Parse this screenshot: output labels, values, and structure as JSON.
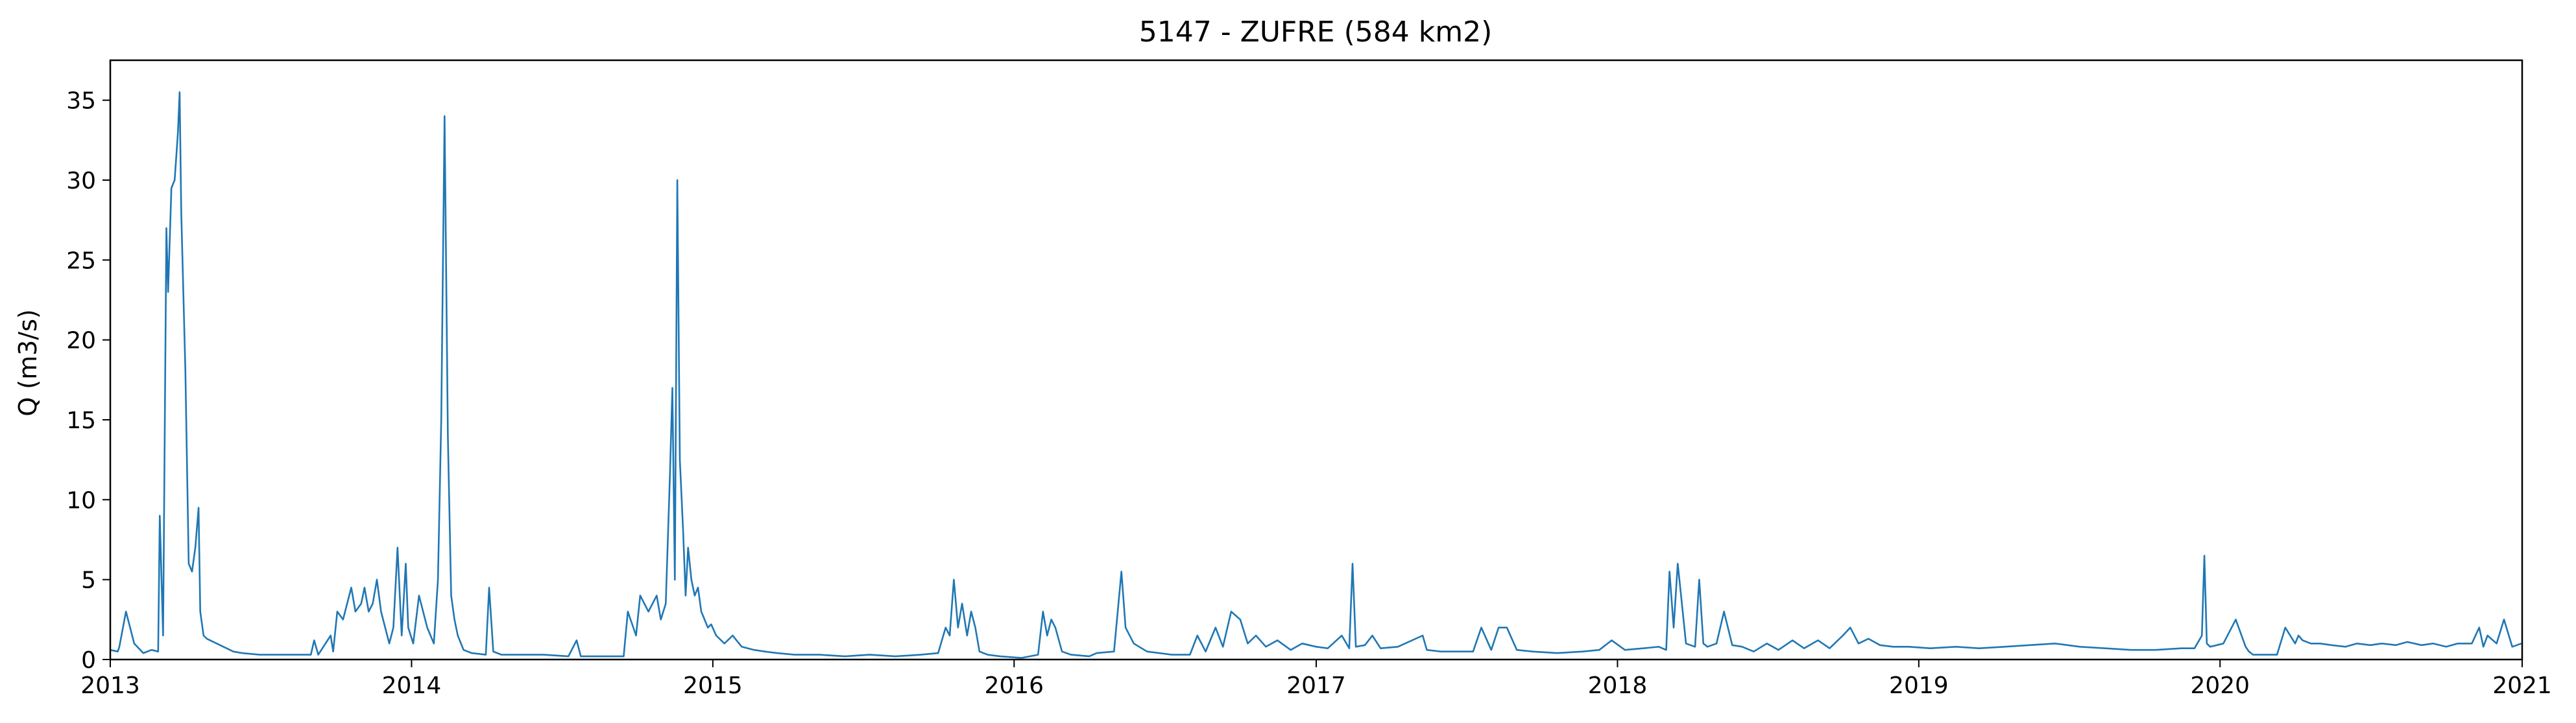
{
  "chart_data": {
    "type": "line",
    "title": "5147 - ZUFRE (584 km2)",
    "xlabel": "",
    "ylabel": "Q (m3/s)",
    "xlim": [
      "2013-01-01",
      "2021-01-01"
    ],
    "ylim": [
      0,
      37.5
    ],
    "x_ticks": [
      "2013",
      "2014",
      "2015",
      "2016",
      "2017",
      "2018",
      "2019",
      "2020",
      "2021"
    ],
    "y_ticks": [
      "0",
      "5",
      "10",
      "15",
      "20",
      "25",
      "30",
      "35"
    ],
    "grid": false,
    "legend": "none",
    "line_color": "#1f77b4",
    "series": [
      {
        "x": [
          "2013-01-01",
          "2013-01-10",
          "2013-01-12",
          "2013-01-20",
          "2013-01-30",
          "2013-02-10",
          "2013-02-20",
          "2013-02-28",
          "2013-03-02",
          "2013-03-06",
          "2013-03-10",
          "2013-03-12",
          "2013-03-16",
          "2013-03-20",
          "2013-03-22",
          "2013-03-24",
          "2013-03-26",
          "2013-03-28",
          "2013-04-02",
          "2013-04-06",
          "2013-04-10",
          "2013-04-14",
          "2013-04-18",
          "2013-04-20",
          "2013-04-24",
          "2013-04-28",
          "2013-05-02",
          "2013-05-06",
          "2013-05-10",
          "2013-05-14",
          "2013-05-18",
          "2013-05-22",
          "2013-05-26",
          "2013-05-30",
          "2013-06-10",
          "2013-07-01",
          "2013-08-01",
          "2013-09-01",
          "2013-09-05",
          "2013-09-10",
          "2013-09-25",
          "2013-09-28",
          "2013-10-03",
          "2013-10-10",
          "2013-10-20",
          "2013-10-25",
          "2013-11-01",
          "2013-11-05",
          "2013-11-10",
          "2013-11-15",
          "2013-11-20",
          "2013-11-25",
          "2013-12-05",
          "2013-12-10",
          "2013-12-15",
          "2013-12-20",
          "2013-12-25",
          "2013-12-28",
          "2014-01-03",
          "2014-01-10",
          "2014-01-20",
          "2014-01-28",
          "2014-02-02",
          "2014-02-06",
          "2014-02-10",
          "2014-02-14",
          "2014-02-18",
          "2014-02-22",
          "2014-02-26",
          "2014-03-05",
          "2014-03-15",
          "2014-04-01",
          "2014-04-05",
          "2014-04-10",
          "2014-04-20",
          "2014-05-10",
          "2014-06-10",
          "2014-07-10",
          "2014-07-20",
          "2014-07-25",
          "2014-08-15",
          "2014-09-15",
          "2014-09-20",
          "2014-09-30",
          "2014-10-05",
          "2014-10-15",
          "2014-10-25",
          "2014-10-30",
          "2014-11-05",
          "2014-11-10",
          "2014-11-13",
          "2014-11-16",
          "2014-11-19",
          "2014-11-22",
          "2014-11-26",
          "2014-11-29",
          "2014-12-02",
          "2014-12-06",
          "2014-12-10",
          "2014-12-14",
          "2014-12-18",
          "2014-12-22",
          "2014-12-26",
          "2014-12-30",
          "2015-01-05",
          "2015-01-15",
          "2015-01-25",
          "2015-02-05",
          "2015-02-20",
          "2015-03-05",
          "2015-03-20",
          "2015-04-10",
          "2015-05-10",
          "2015-06-10",
          "2015-07-10",
          "2015-08-10",
          "2015-09-10",
          "2015-10-01",
          "2015-10-10",
          "2015-10-15",
          "2015-10-20",
          "2015-10-25",
          "2015-10-30",
          "2015-11-05",
          "2015-11-10",
          "2015-11-15",
          "2015-11-20",
          "2015-11-30",
          "2015-12-15",
          "2016-01-10",
          "2016-01-30",
          "2016-02-05",
          "2016-02-10",
          "2016-02-15",
          "2016-02-20",
          "2016-02-28",
          "2016-03-10",
          "2016-04-01",
          "2016-04-10",
          "2016-05-01",
          "2016-05-10",
          "2016-05-15",
          "2016-05-25",
          "2016-06-10",
          "2016-07-10",
          "2016-08-01",
          "2016-08-10",
          "2016-08-20",
          "2016-09-01",
          "2016-09-10",
          "2016-09-20",
          "2016-10-01",
          "2016-10-10",
          "2016-10-20",
          "2016-11-01",
          "2016-11-15",
          "2016-12-01",
          "2016-12-15",
          "2017-01-01",
          "2017-01-15",
          "2017-02-01",
          "2017-02-10",
          "2017-02-14",
          "2017-02-18",
          "2017-03-01",
          "2017-03-10",
          "2017-03-20",
          "2017-04-10",
          "2017-05-10",
          "2017-05-15",
          "2017-06-01",
          "2017-06-20",
          "2017-07-10",
          "2017-07-20",
          "2017-08-01",
          "2017-08-10",
          "2017-08-20",
          "2017-09-01",
          "2017-09-20",
          "2017-10-20",
          "2017-11-20",
          "2017-12-10",
          "2017-12-25",
          "2018-01-10",
          "2018-02-01",
          "2018-02-20",
          "2018-03-01",
          "2018-03-05",
          "2018-03-10",
          "2018-03-15",
          "2018-03-20",
          "2018-03-25",
          "2018-04-05",
          "2018-04-10",
          "2018-04-15",
          "2018-04-20",
          "2018-05-01",
          "2018-05-10",
          "2018-05-20",
          "2018-06-01",
          "2018-06-15",
          "2018-07-01",
          "2018-07-15",
          "2018-08-01",
          "2018-08-15",
          "2018-09-01",
          "2018-09-15",
          "2018-10-01",
          "2018-10-10",
          "2018-10-20",
          "2018-11-01",
          "2018-11-15",
          "2018-12-01",
          "2018-12-20",
          "2019-01-15",
          "2019-02-15",
          "2019-03-15",
          "2019-04-15",
          "2019-05-15",
          "2019-06-15",
          "2019-07-15",
          "2019-08-15",
          "2019-09-15",
          "2019-10-15",
          "2019-11-15",
          "2019-12-01",
          "2019-12-10",
          "2019-12-13",
          "2019-12-16",
          "2019-12-20",
          "2020-01-05",
          "2020-01-20",
          "2020-02-01",
          "2020-02-05",
          "2020-02-10",
          "2020-02-20",
          "2020-03-10",
          "2020-03-20",
          "2020-04-01",
          "2020-04-05",
          "2020-04-10",
          "2020-04-20",
          "2020-05-01",
          "2020-05-15",
          "2020-06-01",
          "2020-06-15",
          "2020-07-01",
          "2020-07-15",
          "2020-08-01",
          "2020-08-15",
          "2020-09-01",
          "2020-09-15",
          "2020-10-01",
          "2020-10-15",
          "2020-11-01",
          "2020-11-10",
          "2020-11-15",
          "2020-11-20",
          "2020-12-01",
          "2020-12-10",
          "2020-12-20",
          "2020-12-31"
        ],
        "y": [
          0.6,
          0.5,
          0.8,
          3.0,
          1.0,
          0.4,
          0.6,
          0.5,
          9.0,
          1.5,
          27.0,
          23.0,
          29.5,
          30.0,
          31.5,
          33.0,
          35.5,
          28.0,
          18.0,
          6.0,
          5.5,
          7.0,
          9.5,
          3.0,
          1.5,
          1.3,
          1.2,
          1.1,
          1.0,
          0.9,
          0.8,
          0.7,
          0.6,
          0.5,
          0.4,
          0.3,
          0.3,
          0.3,
          1.2,
          0.3,
          1.5,
          0.5,
          3.0,
          2.5,
          4.5,
          3.0,
          3.5,
          4.5,
          3.0,
          3.5,
          5.0,
          3.0,
          1.0,
          2.0,
          7.0,
          1.5,
          6.0,
          2.0,
          1.0,
          4.0,
          2.0,
          1.0,
          5.0,
          15.0,
          34.0,
          14.0,
          4.0,
          2.5,
          1.5,
          0.6,
          0.4,
          0.3,
          4.5,
          0.5,
          0.3,
          0.3,
          0.3,
          0.2,
          1.2,
          0.2,
          0.2,
          0.2,
          3.0,
          1.5,
          4.0,
          3.0,
          4.0,
          2.5,
          3.5,
          11.5,
          17.0,
          5.0,
          30.0,
          12.5,
          8.0,
          4.0,
          7.0,
          5.0,
          4.0,
          4.5,
          3.0,
          2.5,
          2.0,
          2.2,
          1.5,
          1.0,
          1.5,
          0.8,
          0.6,
          0.5,
          0.4,
          0.3,
          0.3,
          0.2,
          0.3,
          0.2,
          0.3,
          0.4,
          2.0,
          1.5,
          5.0,
          2.0,
          3.5,
          1.5,
          3.0,
          2.0,
          0.5,
          0.3,
          0.2,
          0.1,
          0.3,
          3.0,
          1.5,
          2.5,
          2.0,
          0.5,
          0.3,
          0.2,
          0.4,
          0.5,
          5.5,
          2.0,
          1.0,
          0.5,
          0.3,
          0.3,
          1.5,
          0.5,
          2.0,
          0.8,
          3.0,
          2.5,
          1.0,
          1.5,
          0.8,
          1.2,
          0.6,
          1.0,
          0.8,
          0.7,
          1.5,
          0.7,
          6.0,
          0.8,
          0.9,
          1.5,
          0.7,
          0.8,
          1.5,
          0.6,
          0.5,
          0.5,
          0.5,
          2.0,
          0.6,
          2.0,
          2.0,
          0.6,
          0.5,
          0.4,
          0.5,
          0.6,
          1.2,
          0.6,
          0.7,
          0.8,
          0.6,
          5.5,
          2.0,
          6.0,
          3.5,
          1.0,
          0.8,
          5.0,
          1.0,
          0.8,
          1.0,
          3.0,
          0.9,
          0.8,
          0.5,
          1.0,
          0.6,
          1.2,
          0.7,
          1.2,
          0.7,
          1.5,
          2.0,
          1.0,
          1.3,
          0.9,
          0.8,
          0.8,
          0.7,
          0.8,
          0.7,
          0.8,
          0.9,
          1.0,
          0.8,
          0.7,
          0.6,
          0.6,
          0.7,
          0.7,
          1.5,
          6.5,
          1.0,
          0.8,
          1.0,
          2.5,
          0.8,
          0.5,
          0.3,
          0.3,
          0.3,
          2.0,
          1.0,
          1.5,
          1.2,
          1.0,
          1.0,
          0.9,
          0.8,
          1.0,
          0.9,
          1.0,
          0.9,
          1.1,
          0.9,
          1.0,
          0.8,
          1.0,
          1.0,
          2.0,
          0.8,
          1.5,
          1.0,
          2.5,
          0.8,
          1.0
        ]
      }
    ]
  }
}
